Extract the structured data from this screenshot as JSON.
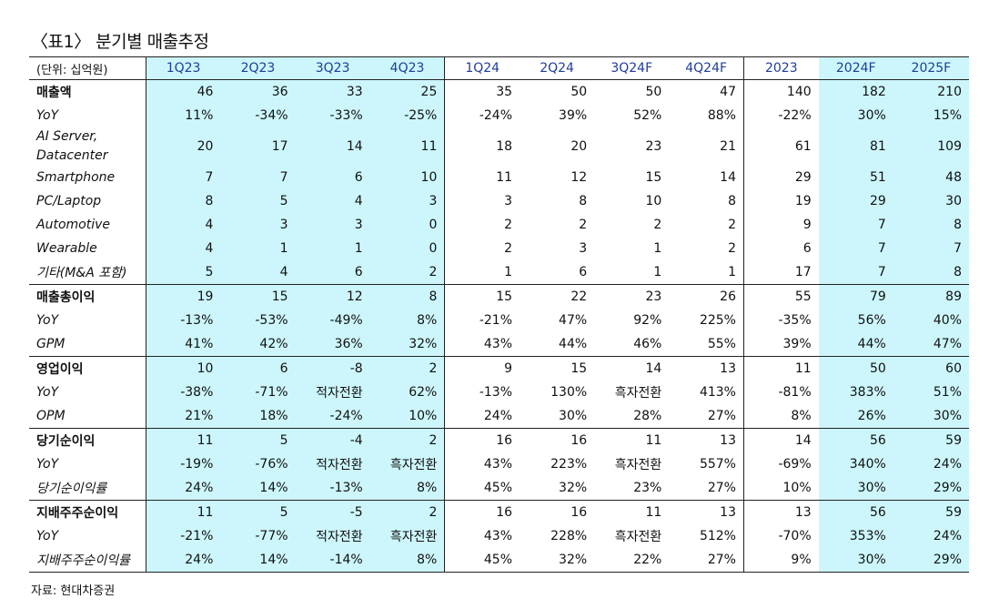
{
  "title": "〈표1〉 분기별 매출추정",
  "table": {
    "unit": "(단위: 십억원)",
    "columns": [
      "1Q23",
      "2Q23",
      "3Q23",
      "4Q23",
      "1Q24",
      "2Q24",
      "3Q24F",
      "4Q24F",
      "2023",
      "2024F",
      "2025F"
    ],
    "groups": [
      {
        "rows": [
          {
            "label": "매출액",
            "values": [
              46,
              36,
              33,
              25,
              35,
              50,
              50,
              47,
              140,
              182,
              210
            ]
          },
          {
            "label": "YoY",
            "values": [
              "11%",
              "-34%",
              "-33%",
              "-25%",
              "-24%",
              "39%",
              "52%",
              "88%",
              "-22%",
              "30%",
              "15%"
            ]
          },
          {
            "label": "AI Server,\nDatacenter",
            "values": [
              20,
              17,
              14,
              11,
              18,
              20,
              23,
              21,
              61,
              81,
              109
            ]
          },
          {
            "label": "Smartphone",
            "values": [
              7,
              7,
              6,
              10,
              11,
              12,
              15,
              14,
              29,
              51,
              48
            ]
          },
          {
            "label": "PC/Laptop",
            "values": [
              8,
              5,
              4,
              3,
              3,
              8,
              10,
              8,
              19,
              29,
              30
            ]
          },
          {
            "label": "Automotive",
            "values": [
              4,
              3,
              3,
              0,
              2,
              2,
              2,
              2,
              9,
              7,
              8
            ]
          },
          {
            "label": "Wearable",
            "values": [
              4,
              1,
              1,
              0,
              2,
              3,
              1,
              2,
              6,
              7,
              7
            ]
          },
          {
            "label": "기타(M&A 포함)",
            "values": [
              5,
              4,
              6,
              2,
              1,
              6,
              1,
              1,
              17,
              7,
              8
            ]
          }
        ]
      },
      {
        "rows": [
          {
            "label": "매출총이익",
            "values": [
              19,
              15,
              12,
              8,
              15,
              22,
              23,
              26,
              55,
              79,
              89
            ]
          },
          {
            "label": "YoY",
            "values": [
              "-13%",
              "-53%",
              "-49%",
              "8%",
              "-21%",
              "47%",
              "92%",
              "225%",
              "-35%",
              "56%",
              "40%"
            ]
          },
          {
            "label": "GPM",
            "values": [
              "41%",
              "42%",
              "36%",
              "32%",
              "43%",
              "44%",
              "46%",
              "55%",
              "39%",
              "44%",
              "47%"
            ]
          }
        ]
      },
      {
        "rows": [
          {
            "label": "영업이익",
            "values": [
              10,
              6,
              -8,
              2,
              9,
              15,
              14,
              13,
              11,
              50,
              60
            ]
          },
          {
            "label": "YoY",
            "values": [
              "-38%",
              "-71%",
              "적자전환",
              "62%",
              "-13%",
              "130%",
              "흑자전환",
              "413%",
              "-81%",
              "383%",
              "51%"
            ]
          },
          {
            "label": "OPM",
            "values": [
              "21%",
              "18%",
              "-24%",
              "10%",
              "24%",
              "30%",
              "28%",
              "27%",
              "8%",
              "26%",
              "30%"
            ]
          }
        ]
      },
      {
        "rows": [
          {
            "label": "당기순이익",
            "values": [
              11,
              5,
              -4,
              2,
              16,
              16,
              11,
              13,
              14,
              56,
              59
            ]
          },
          {
            "label": "YoY",
            "values": [
              "-19%",
              "-76%",
              "적자전환",
              "흑자전환",
              "43%",
              "223%",
              "흑자전환",
              "557%",
              "-69%",
              "340%",
              "24%"
            ]
          },
          {
            "label": "당기순이익률",
            "values": [
              "24%",
              "14%",
              "-13%",
              "8%",
              "45%",
              "32%",
              "23%",
              "27%",
              "10%",
              "30%",
              "29%"
            ]
          }
        ]
      },
      {
        "rows": [
          {
            "label": "지배주주순이익",
            "values": [
              11,
              5,
              -5,
              2,
              16,
              16,
              11,
              13,
              13,
              56,
              59
            ]
          },
          {
            "label": "YoY",
            "values": [
              "-21%",
              "-77%",
              "적자전환",
              "흑자전환",
              "43%",
              "228%",
              "흑자전환",
              "512%",
              "-70%",
              "353%",
              "24%"
            ]
          },
          {
            "label": "지배주주순이익률",
            "values": [
              "24%",
              "14%",
              "-14%",
              "8%",
              "45%",
              "32%",
              "22%",
              "27%",
              "9%",
              "30%",
              "29%"
            ]
          }
        ]
      }
    ]
  },
  "source": "자료: 현대차증권"
}
